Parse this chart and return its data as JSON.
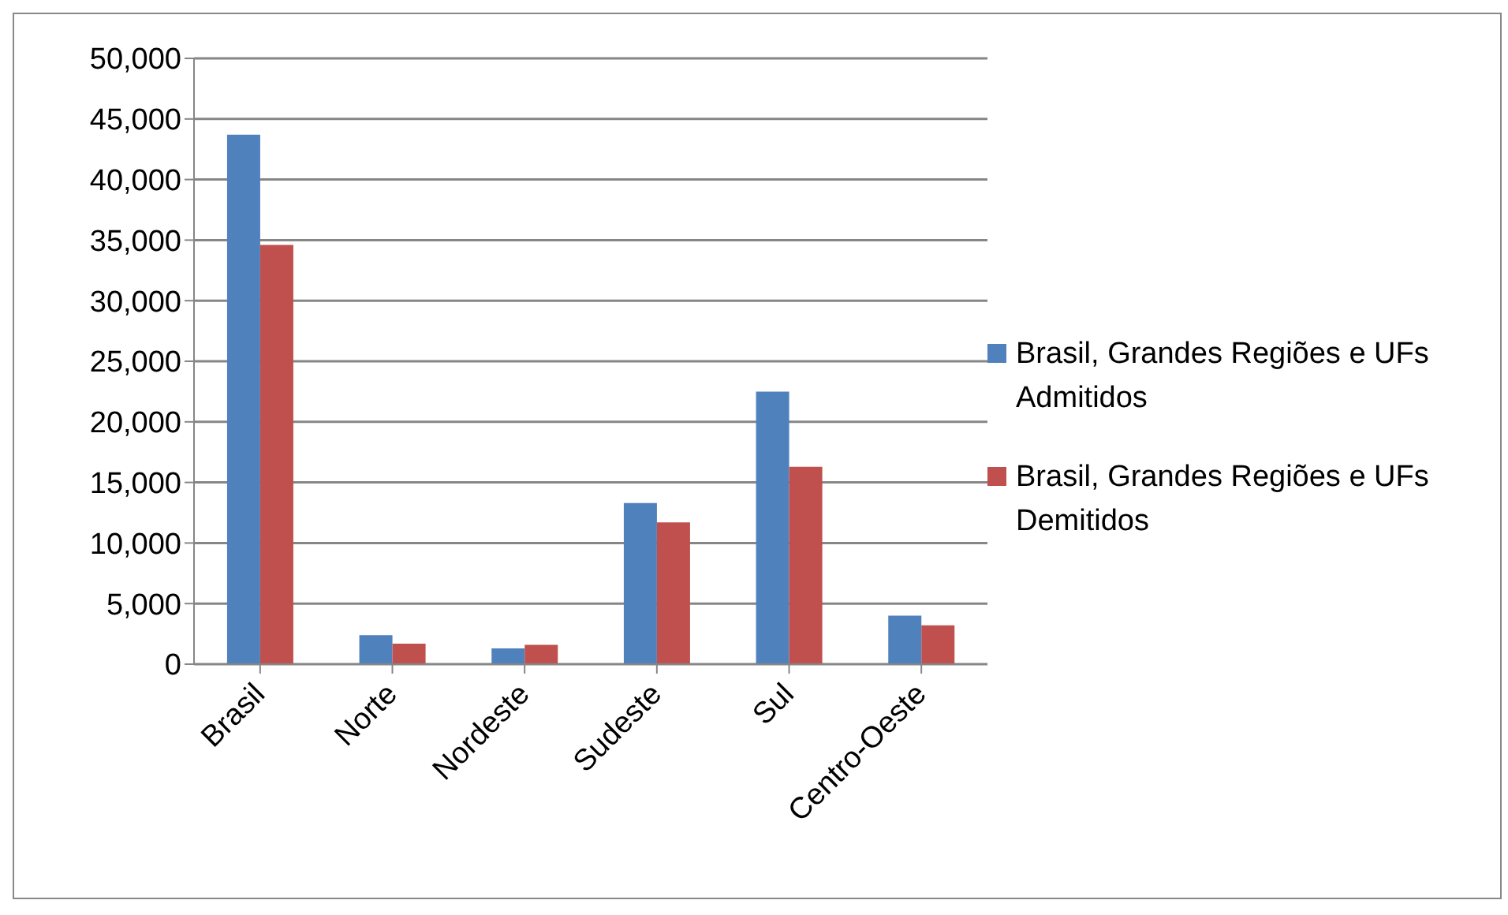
{
  "chart_data": {
    "type": "bar",
    "categories": [
      "Brasil",
      "Norte",
      "Nordeste",
      "Sudeste",
      "Sul",
      "Centro-Oeste"
    ],
    "series": [
      {
        "name": "Brasil, Grandes Regiões e UFs Admitidos",
        "color": "#4f81bd",
        "values": [
          43700,
          2400,
          1300,
          13300,
          22500,
          4000
        ]
      },
      {
        "name": "Brasil, Grandes Regiões e UFs Demitidos",
        "color": "#c0504d",
        "values": [
          34600,
          1700,
          1600,
          11700,
          16300,
          3200
        ]
      }
    ],
    "ylim": [
      0,
      50000
    ],
    "yticks": [
      {
        "value": 0,
        "label": "0"
      },
      {
        "value": 5000,
        "label": "5,000"
      },
      {
        "value": 10000,
        "label": "10,000"
      },
      {
        "value": 15000,
        "label": "15,000"
      },
      {
        "value": 20000,
        "label": "20,000"
      },
      {
        "value": 25000,
        "label": "25,000"
      },
      {
        "value": 30000,
        "label": "30,000"
      },
      {
        "value": 35000,
        "label": "35,000"
      },
      {
        "value": 40000,
        "label": "40,000"
      },
      {
        "value": 45000,
        "label": "45,000"
      },
      {
        "value": 50000,
        "label": "50,000"
      }
    ],
    "grid": "y",
    "legend": "right"
  }
}
